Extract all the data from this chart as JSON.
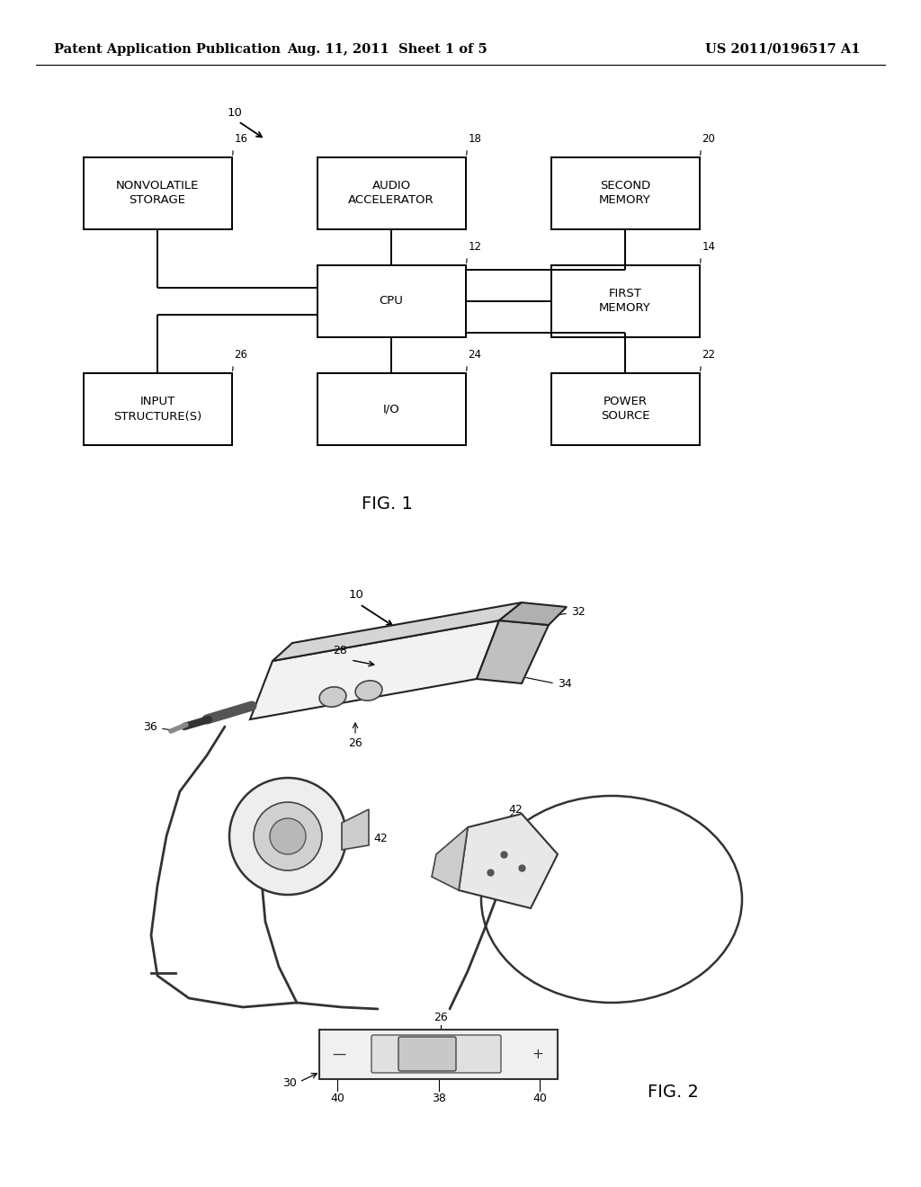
{
  "background_color": "#ffffff",
  "header_left": "Patent Application Publication",
  "header_mid": "Aug. 11, 2011  Sheet 1 of 5",
  "header_right": "US 2011/0196517 A1",
  "fig1_label": "FIG. 1",
  "fig2_label": "FIG. 2",
  "text_color": "#000000",
  "line_color": "#000000",
  "line_width": 1.4,
  "box_face_color": "#ffffff",
  "font_size_block": 9.5,
  "font_size_num": 8.5,
  "font_size_fig": 14
}
